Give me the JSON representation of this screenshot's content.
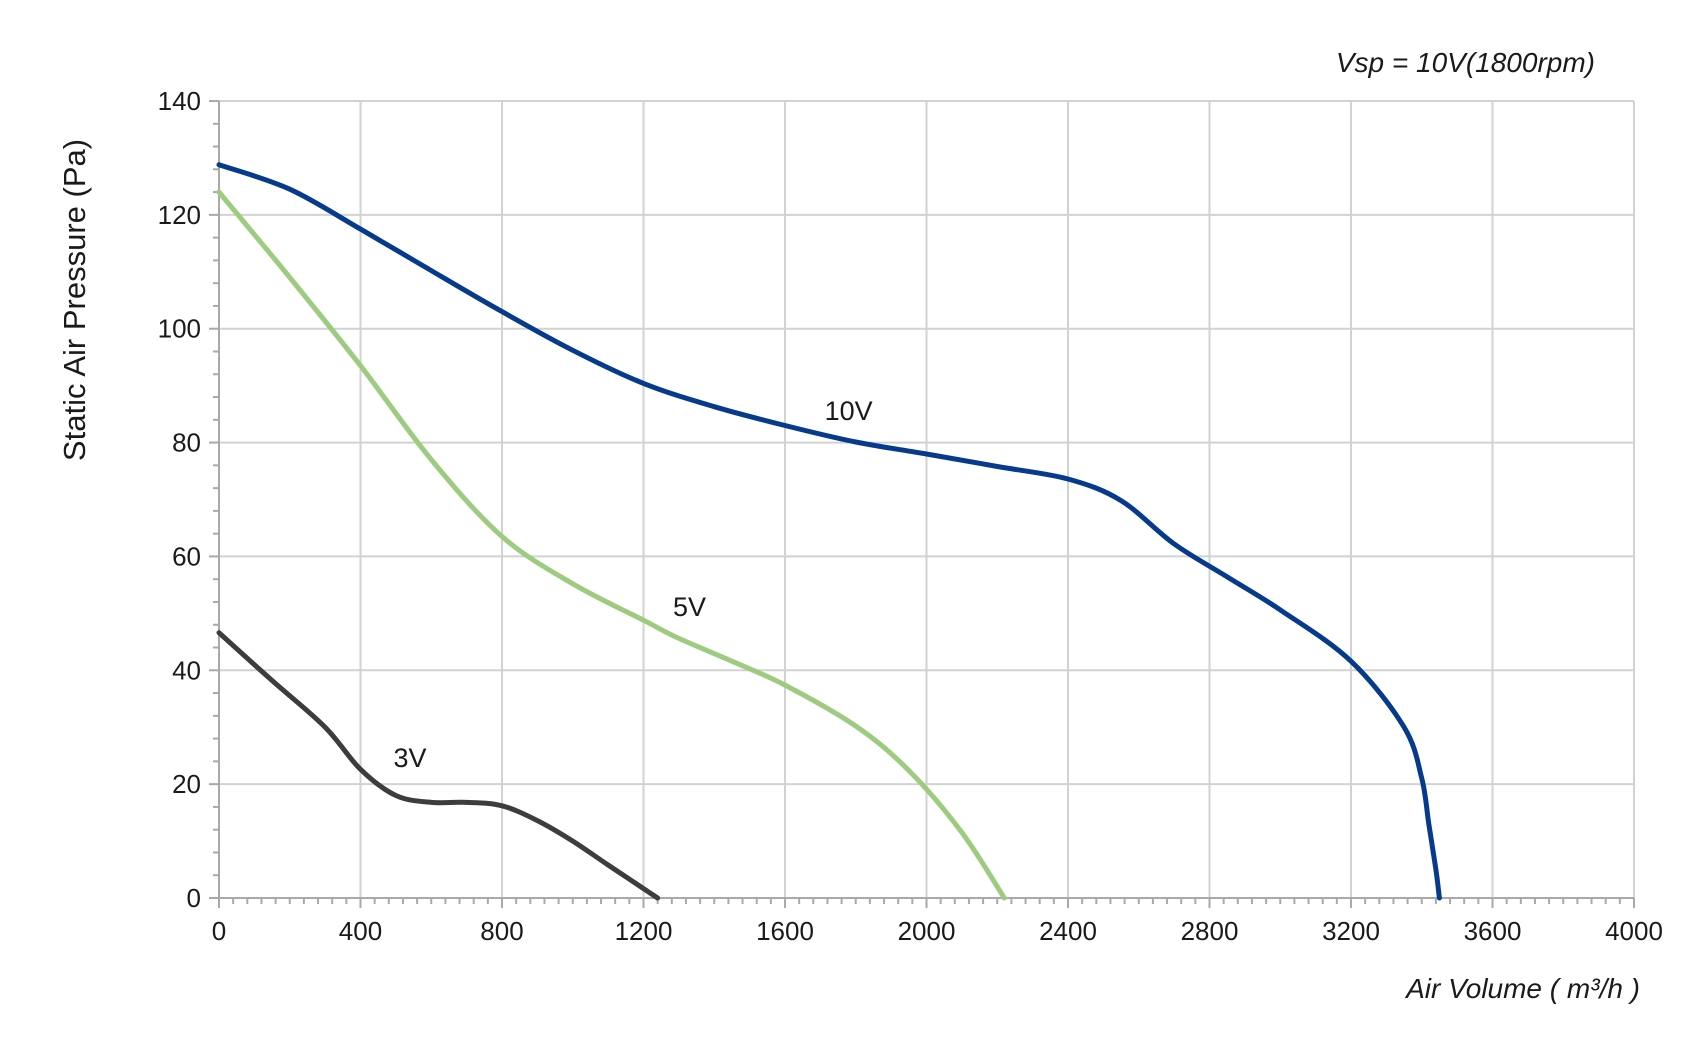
{
  "chart_data": {
    "type": "line",
    "annotation": "Vsp = 10V(1800rpm)",
    "xlabel": "Air Volume ( m³/h )",
    "ylabel": "Static Air Pressure  (Pa)",
    "xlim": [
      0,
      4000
    ],
    "ylim": [
      0,
      140
    ],
    "x_ticks": [
      0,
      400,
      800,
      1200,
      1600,
      2000,
      2400,
      2800,
      3200,
      3600,
      4000
    ],
    "y_ticks": [
      0,
      20,
      40,
      60,
      80,
      100,
      120,
      140
    ],
    "grid": true,
    "series": [
      {
        "name": "10V",
        "color": "#063a8c",
        "points": [
          [
            0,
            128.8
          ],
          [
            200,
            124.5
          ],
          [
            400,
            117.5
          ],
          [
            600,
            110.2
          ],
          [
            800,
            103
          ],
          [
            1000,
            96.2
          ],
          [
            1200,
            90.4
          ],
          [
            1400,
            86.3
          ],
          [
            1600,
            83
          ],
          [
            1800,
            80.1
          ],
          [
            2000,
            78
          ],
          [
            2200,
            75.8
          ],
          [
            2400,
            73.6
          ],
          [
            2550,
            69.8
          ],
          [
            2700,
            62.2
          ],
          [
            2850,
            56.4
          ],
          [
            3000,
            50.6
          ],
          [
            3200,
            41.6
          ],
          [
            3350,
            30
          ],
          [
            3400,
            21
          ],
          [
            3420,
            13
          ],
          [
            3440,
            5
          ],
          [
            3450,
            0
          ]
        ]
      },
      {
        "name": "5V",
        "color": "#9dcb7f",
        "points": [
          [
            0,
            124
          ],
          [
            200,
            109
          ],
          [
            400,
            93.5
          ],
          [
            600,
            77
          ],
          [
            800,
            63.5
          ],
          [
            1000,
            55.2
          ],
          [
            1200,
            48.8
          ],
          [
            1300,
            45.6
          ],
          [
            1450,
            41.6
          ],
          [
            1600,
            37.4
          ],
          [
            1800,
            30.2
          ],
          [
            1950,
            22.4
          ],
          [
            2100,
            11.5
          ],
          [
            2220,
            0
          ]
        ]
      },
      {
        "name": "3V",
        "color": "#3d3d3d",
        "points": [
          [
            0,
            46.6
          ],
          [
            150,
            38.2
          ],
          [
            300,
            30
          ],
          [
            400,
            22.6
          ],
          [
            500,
            18
          ],
          [
            600,
            16.8
          ],
          [
            700,
            16.8
          ],
          [
            800,
            16.2
          ],
          [
            900,
            13.6
          ],
          [
            1000,
            10
          ],
          [
            1100,
            5.8
          ],
          [
            1240,
            0
          ]
        ]
      }
    ],
    "series_labels": [
      {
        "series": "10V",
        "x": 1780,
        "y": 84
      },
      {
        "series": "5V",
        "x": 1330,
        "y": 49.5
      },
      {
        "series": "3V",
        "x": 540,
        "y": 23
      }
    ]
  }
}
